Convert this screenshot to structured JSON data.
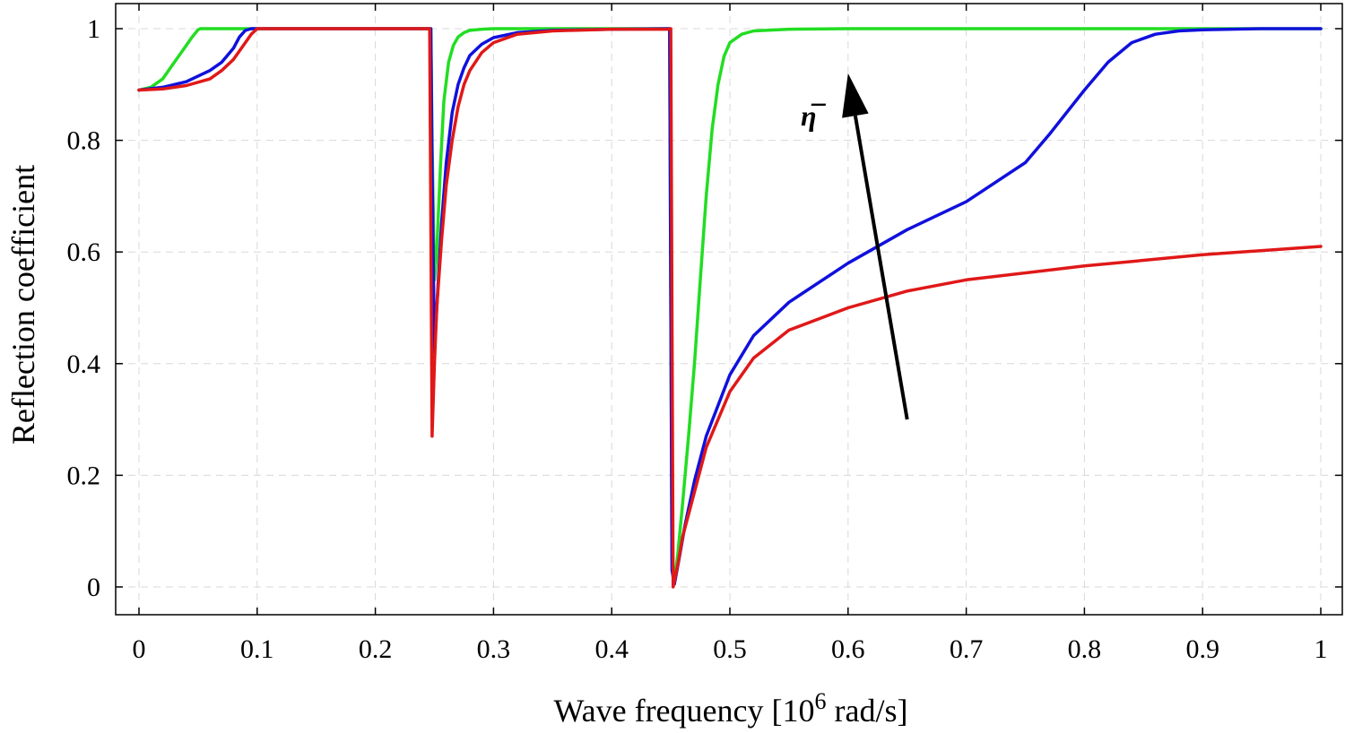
{
  "chart_data": {
    "type": "line",
    "title": "",
    "xlabel_main": "Wave frequency [10",
    "xlabel_sup": "6",
    "xlabel_tail": " rad/s]",
    "ylabel": "Reflection coefficient",
    "xlim": [
      0,
      1
    ],
    "ylim": [
      0,
      1
    ],
    "grid": true,
    "x_ticks": [
      0,
      0.1,
      0.2,
      0.3,
      0.4,
      0.5,
      0.6,
      0.7,
      0.8,
      0.9,
      1
    ],
    "x_tick_labels": [
      "0",
      "0.1",
      "0.2",
      "0.3",
      "0.4",
      "0.5",
      "0.6",
      "0.7",
      "0.8",
      "0.9",
      "1"
    ],
    "y_ticks": [
      0,
      0.2,
      0.4,
      0.6,
      0.8,
      1
    ],
    "y_tick_labels": [
      "0",
      "0.2",
      "0.4",
      "0.6",
      "0.8",
      "1"
    ],
    "annotation": {
      "text": "η̅",
      "arrow_from": [
        0.65,
        0.3
      ],
      "arrow_to": [
        0.6,
        0.92
      ]
    },
    "series": [
      {
        "name": "green",
        "color": "#22dd22",
        "x": [
          0,
          0.01,
          0.02,
          0.03,
          0.04,
          0.045,
          0.05,
          0.052,
          0.1,
          0.247,
          0.248,
          0.25,
          0.252,
          0.255,
          0.258,
          0.262,
          0.266,
          0.27,
          0.275,
          0.28,
          0.29,
          0.3,
          0.35,
          0.449,
          0.451,
          0.453,
          0.456,
          0.46,
          0.465,
          0.47,
          0.475,
          0.48,
          0.485,
          0.49,
          0.495,
          0.5,
          0.51,
          0.52,
          0.55,
          0.6,
          0.8,
          1
        ],
        "y": [
          0.89,
          0.895,
          0.91,
          0.94,
          0.97,
          0.985,
          0.998,
          1,
          1,
          1,
          0.8,
          0.55,
          0.6,
          0.75,
          0.87,
          0.94,
          0.97,
          0.985,
          0.993,
          0.997,
          0.999,
          1,
          1,
          1,
          0.05,
          0.01,
          0.06,
          0.15,
          0.27,
          0.4,
          0.55,
          0.7,
          0.82,
          0.9,
          0.95,
          0.975,
          0.99,
          0.996,
          0.999,
          1,
          1,
          1
        ]
      },
      {
        "name": "blue",
        "color": "#1010dd",
        "x": [
          0,
          0.02,
          0.04,
          0.06,
          0.07,
          0.08,
          0.085,
          0.09,
          0.095,
          0.1,
          0.247,
          0.248,
          0.25,
          0.252,
          0.256,
          0.26,
          0.265,
          0.27,
          0.275,
          0.28,
          0.29,
          0.3,
          0.32,
          0.35,
          0.4,
          0.449,
          0.451,
          0.453,
          0.457,
          0.462,
          0.47,
          0.48,
          0.5,
          0.52,
          0.55,
          0.6,
          0.65,
          0.7,
          0.75,
          0.77,
          0.8,
          0.82,
          0.84,
          0.86,
          0.88,
          0.9,
          0.95,
          1
        ],
        "y": [
          0.89,
          0.895,
          0.905,
          0.925,
          0.94,
          0.965,
          0.985,
          0.997,
          1,
          1,
          1,
          0.75,
          0.42,
          0.5,
          0.65,
          0.76,
          0.85,
          0.9,
          0.93,
          0.952,
          0.972,
          0.984,
          0.993,
          0.997,
          0.999,
          1,
          0.03,
          0.005,
          0.05,
          0.11,
          0.19,
          0.27,
          0.38,
          0.45,
          0.51,
          0.58,
          0.64,
          0.69,
          0.76,
          0.81,
          0.89,
          0.94,
          0.975,
          0.99,
          0.996,
          0.998,
          1,
          1
        ]
      },
      {
        "name": "red",
        "color": "#e01818",
        "x": [
          0,
          0.02,
          0.04,
          0.06,
          0.07,
          0.08,
          0.09,
          0.095,
          0.1,
          0.1,
          0.245,
          0.246,
          0.248,
          0.25,
          0.252,
          0.256,
          0.26,
          0.265,
          0.27,
          0.275,
          0.28,
          0.29,
          0.3,
          0.32,
          0.35,
          0.4,
          0.448,
          0.45,
          0.452,
          0.456,
          0.46,
          0.47,
          0.48,
          0.5,
          0.52,
          0.55,
          0.6,
          0.65,
          0.7,
          0.8,
          0.9,
          1
        ],
        "y": [
          0.89,
          0.892,
          0.898,
          0.91,
          0.925,
          0.945,
          0.975,
          0.99,
          1,
          1,
          1,
          1,
          0.27,
          0.4,
          0.5,
          0.62,
          0.72,
          0.8,
          0.86,
          0.9,
          0.925,
          0.957,
          0.975,
          0.99,
          0.996,
          0.999,
          0.999,
          1,
          0.0,
          0.04,
          0.09,
          0.17,
          0.25,
          0.35,
          0.41,
          0.46,
          0.5,
          0.53,
          0.55,
          0.575,
          0.595,
          0.61
        ]
      }
    ]
  }
}
